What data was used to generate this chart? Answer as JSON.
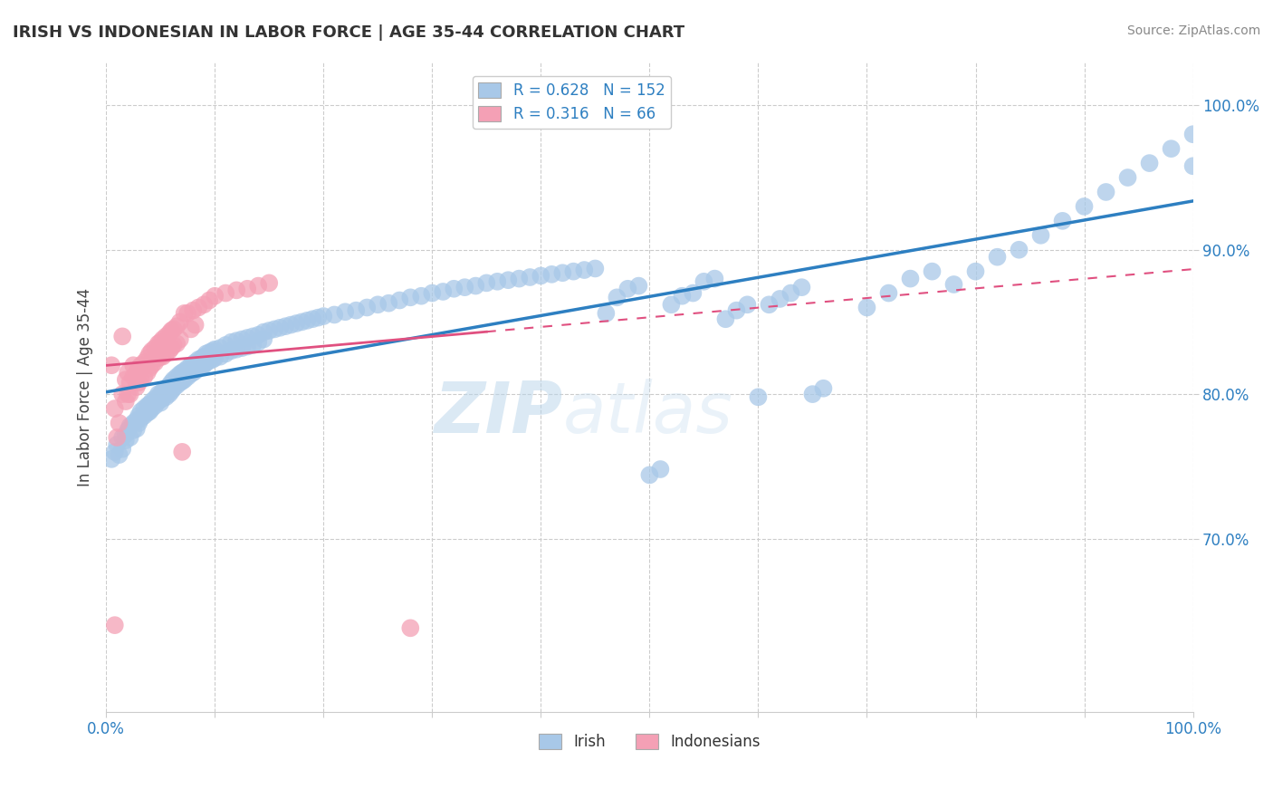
{
  "title": "IRISH VS INDONESIAN IN LABOR FORCE | AGE 35-44 CORRELATION CHART",
  "source_text": "Source: ZipAtlas.com",
  "ylabel": "In Labor Force | Age 35-44",
  "xlim": [
    0.0,
    1.0
  ],
  "ylim": [
    0.58,
    1.03
  ],
  "x_ticks": [
    0.0,
    0.1,
    0.2,
    0.3,
    0.4,
    0.5,
    0.6,
    0.7,
    0.8,
    0.9,
    1.0
  ],
  "y_ticks": [
    0.7,
    0.8,
    0.9,
    1.0
  ],
  "irish_color": "#a8c8e8",
  "indonesian_color": "#f4a0b5",
  "irish_line_color": "#2d7fc1",
  "indonesian_line_color": "#e05080",
  "irish_R": 0.628,
  "irish_N": 152,
  "indonesian_R": 0.316,
  "indonesian_N": 66,
  "legend_color": "#2d7fc1",
  "watermark_color": "#c8dff0",
  "background_color": "#ffffff",
  "irish_scatter": [
    [
      0.005,
      0.755
    ],
    [
      0.008,
      0.76
    ],
    [
      0.01,
      0.765
    ],
    [
      0.012,
      0.758
    ],
    [
      0.015,
      0.77
    ],
    [
      0.015,
      0.762
    ],
    [
      0.018,
      0.768
    ],
    [
      0.018,
      0.772
    ],
    [
      0.02,
      0.775
    ],
    [
      0.022,
      0.778
    ],
    [
      0.022,
      0.77
    ],
    [
      0.025,
      0.78
    ],
    [
      0.025,
      0.775
    ],
    [
      0.028,
      0.782
    ],
    [
      0.028,
      0.776
    ],
    [
      0.03,
      0.785
    ],
    [
      0.03,
      0.78
    ],
    [
      0.032,
      0.788
    ],
    [
      0.032,
      0.783
    ],
    [
      0.035,
      0.79
    ],
    [
      0.035,
      0.785
    ],
    [
      0.038,
      0.792
    ],
    [
      0.038,
      0.787
    ],
    [
      0.04,
      0.793
    ],
    [
      0.04,
      0.788
    ],
    [
      0.042,
      0.795
    ],
    [
      0.042,
      0.79
    ],
    [
      0.045,
      0.797
    ],
    [
      0.045,
      0.792
    ],
    [
      0.048,
      0.8
    ],
    [
      0.048,
      0.795
    ],
    [
      0.05,
      0.8
    ],
    [
      0.05,
      0.794
    ],
    [
      0.052,
      0.802
    ],
    [
      0.052,
      0.797
    ],
    [
      0.055,
      0.804
    ],
    [
      0.055,
      0.798
    ],
    [
      0.058,
      0.806
    ],
    [
      0.058,
      0.8
    ],
    [
      0.06,
      0.808
    ],
    [
      0.06,
      0.802
    ],
    [
      0.062,
      0.81
    ],
    [
      0.062,
      0.804
    ],
    [
      0.065,
      0.812
    ],
    [
      0.065,
      0.806
    ],
    [
      0.068,
      0.814
    ],
    [
      0.068,
      0.808
    ],
    [
      0.07,
      0.815
    ],
    [
      0.07,
      0.809
    ],
    [
      0.072,
      0.816
    ],
    [
      0.072,
      0.81
    ],
    [
      0.075,
      0.818
    ],
    [
      0.075,
      0.812
    ],
    [
      0.078,
      0.82
    ],
    [
      0.078,
      0.814
    ],
    [
      0.08,
      0.82
    ],
    [
      0.08,
      0.815
    ],
    [
      0.082,
      0.822
    ],
    [
      0.082,
      0.816
    ],
    [
      0.085,
      0.824
    ],
    [
      0.085,
      0.818
    ],
    [
      0.088,
      0.825
    ],
    [
      0.088,
      0.819
    ],
    [
      0.09,
      0.826
    ],
    [
      0.09,
      0.82
    ],
    [
      0.092,
      0.828
    ],
    [
      0.092,
      0.822
    ],
    [
      0.095,
      0.829
    ],
    [
      0.095,
      0.823
    ],
    [
      0.098,
      0.83
    ],
    [
      0.098,
      0.824
    ],
    [
      0.1,
      0.831
    ],
    [
      0.1,
      0.825
    ],
    [
      0.105,
      0.832
    ],
    [
      0.105,
      0.826
    ],
    [
      0.11,
      0.834
    ],
    [
      0.11,
      0.828
    ],
    [
      0.115,
      0.836
    ],
    [
      0.115,
      0.83
    ],
    [
      0.12,
      0.837
    ],
    [
      0.12,
      0.831
    ],
    [
      0.125,
      0.838
    ],
    [
      0.125,
      0.832
    ],
    [
      0.13,
      0.839
    ],
    [
      0.13,
      0.833
    ],
    [
      0.135,
      0.84
    ],
    [
      0.135,
      0.834
    ],
    [
      0.14,
      0.841
    ],
    [
      0.14,
      0.836
    ],
    [
      0.145,
      0.843
    ],
    [
      0.145,
      0.838
    ],
    [
      0.15,
      0.844
    ],
    [
      0.155,
      0.845
    ],
    [
      0.16,
      0.846
    ],
    [
      0.165,
      0.847
    ],
    [
      0.17,
      0.848
    ],
    [
      0.175,
      0.849
    ],
    [
      0.18,
      0.85
    ],
    [
      0.185,
      0.851
    ],
    [
      0.19,
      0.852
    ],
    [
      0.195,
      0.853
    ],
    [
      0.2,
      0.854
    ],
    [
      0.21,
      0.855
    ],
    [
      0.22,
      0.857
    ],
    [
      0.23,
      0.858
    ],
    [
      0.24,
      0.86
    ],
    [
      0.25,
      0.862
    ],
    [
      0.26,
      0.863
    ],
    [
      0.27,
      0.865
    ],
    [
      0.28,
      0.867
    ],
    [
      0.29,
      0.868
    ],
    [
      0.3,
      0.87
    ],
    [
      0.31,
      0.871
    ],
    [
      0.32,
      0.873
    ],
    [
      0.33,
      0.874
    ],
    [
      0.34,
      0.875
    ],
    [
      0.35,
      0.877
    ],
    [
      0.36,
      0.878
    ],
    [
      0.37,
      0.879
    ],
    [
      0.38,
      0.88
    ],
    [
      0.39,
      0.881
    ],
    [
      0.4,
      0.882
    ],
    [
      0.41,
      0.883
    ],
    [
      0.42,
      0.884
    ],
    [
      0.43,
      0.885
    ],
    [
      0.44,
      0.886
    ],
    [
      0.45,
      0.887
    ],
    [
      0.46,
      0.856
    ],
    [
      0.47,
      0.867
    ],
    [
      0.48,
      0.873
    ],
    [
      0.49,
      0.875
    ],
    [
      0.5,
      0.744
    ],
    [
      0.51,
      0.748
    ],
    [
      0.52,
      0.862
    ],
    [
      0.53,
      0.868
    ],
    [
      0.54,
      0.87
    ],
    [
      0.55,
      0.878
    ],
    [
      0.56,
      0.88
    ],
    [
      0.57,
      0.852
    ],
    [
      0.58,
      0.858
    ],
    [
      0.59,
      0.862
    ],
    [
      0.6,
      0.798
    ],
    [
      0.61,
      0.862
    ],
    [
      0.62,
      0.866
    ],
    [
      0.63,
      0.87
    ],
    [
      0.64,
      0.874
    ],
    [
      0.65,
      0.8
    ],
    [
      0.66,
      0.804
    ],
    [
      0.7,
      0.86
    ],
    [
      0.72,
      0.87
    ],
    [
      0.74,
      0.88
    ],
    [
      0.76,
      0.885
    ],
    [
      0.78,
      0.876
    ],
    [
      0.8,
      0.885
    ],
    [
      0.82,
      0.895
    ],
    [
      0.84,
      0.9
    ],
    [
      0.86,
      0.91
    ],
    [
      0.88,
      0.92
    ],
    [
      0.9,
      0.93
    ],
    [
      0.92,
      0.94
    ],
    [
      0.94,
      0.95
    ],
    [
      0.96,
      0.96
    ],
    [
      0.98,
      0.97
    ],
    [
      1.0,
      0.98
    ],
    [
      1.0,
      0.958
    ]
  ],
  "indonesian_scatter": [
    [
      0.005,
      0.82
    ],
    [
      0.008,
      0.79
    ],
    [
      0.01,
      0.77
    ],
    [
      0.012,
      0.78
    ],
    [
      0.015,
      0.84
    ],
    [
      0.015,
      0.8
    ],
    [
      0.018,
      0.81
    ],
    [
      0.018,
      0.795
    ],
    [
      0.02,
      0.815
    ],
    [
      0.02,
      0.8
    ],
    [
      0.022,
      0.808
    ],
    [
      0.022,
      0.8
    ],
    [
      0.025,
      0.812
    ],
    [
      0.025,
      0.82
    ],
    [
      0.028,
      0.815
    ],
    [
      0.028,
      0.805
    ],
    [
      0.03,
      0.818
    ],
    [
      0.03,
      0.808
    ],
    [
      0.032,
      0.82
    ],
    [
      0.032,
      0.81
    ],
    [
      0.035,
      0.822
    ],
    [
      0.035,
      0.812
    ],
    [
      0.038,
      0.825
    ],
    [
      0.038,
      0.815
    ],
    [
      0.04,
      0.828
    ],
    [
      0.04,
      0.818
    ],
    [
      0.042,
      0.83
    ],
    [
      0.042,
      0.82
    ],
    [
      0.045,
      0.832
    ],
    [
      0.045,
      0.822
    ],
    [
      0.048,
      0.835
    ],
    [
      0.048,
      0.825
    ],
    [
      0.05,
      0.836
    ],
    [
      0.05,
      0.826
    ],
    [
      0.052,
      0.838
    ],
    [
      0.052,
      0.826
    ],
    [
      0.055,
      0.84
    ],
    [
      0.055,
      0.828
    ],
    [
      0.058,
      0.842
    ],
    [
      0.058,
      0.83
    ],
    [
      0.06,
      0.844
    ],
    [
      0.06,
      0.832
    ],
    [
      0.062,
      0.845
    ],
    [
      0.062,
      0.834
    ],
    [
      0.065,
      0.847
    ],
    [
      0.065,
      0.835
    ],
    [
      0.068,
      0.85
    ],
    [
      0.068,
      0.838
    ],
    [
      0.07,
      0.76
    ],
    [
      0.072,
      0.856
    ],
    [
      0.075,
      0.856
    ],
    [
      0.078,
      0.845
    ],
    [
      0.08,
      0.858
    ],
    [
      0.082,
      0.848
    ],
    [
      0.085,
      0.86
    ],
    [
      0.09,
      0.862
    ],
    [
      0.095,
      0.865
    ],
    [
      0.1,
      0.868
    ],
    [
      0.11,
      0.87
    ],
    [
      0.12,
      0.872
    ],
    [
      0.13,
      0.873
    ],
    [
      0.14,
      0.875
    ],
    [
      0.15,
      0.877
    ],
    [
      0.008,
      0.64
    ],
    [
      0.28,
      0.638
    ]
  ]
}
